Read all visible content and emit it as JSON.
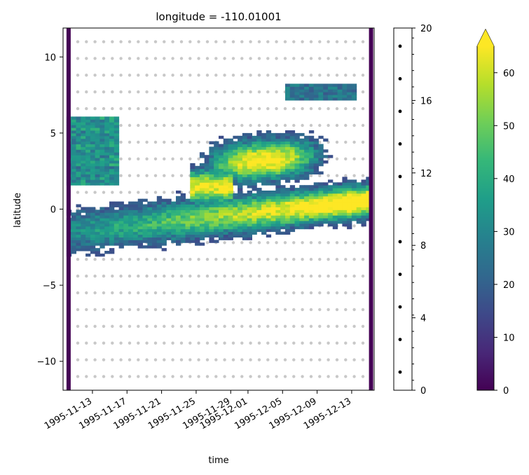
{
  "chart_data": [
    {
      "type": "heatmap",
      "title": "longitude = -110.01001",
      "xlabel": "time",
      "ylabel": "latitude",
      "xtick_labels": [
        "1995-11-13",
        "1995-11-17",
        "1995-11-21",
        "1995-11-25",
        "1995-11-29",
        "1995-12-01",
        "1995-12-05",
        "1995-12-09",
        "1995-12-13"
      ],
      "xtick_dates": [
        "1995-11-13",
        "1995-11-17",
        "1995-11-21",
        "1995-11-25",
        "1995-11-29",
        "1995-12-01",
        "1995-12-05",
        "1995-12-09",
        "1995-12-13"
      ],
      "xlim": [
        "1995-11-09.6",
        "1995-12-15.6"
      ],
      "yticks": [
        -10,
        -5,
        0,
        5,
        10
      ],
      "ytick_labels": [
        "−10",
        "−5",
        "0",
        "5",
        "10"
      ],
      "ylim": [
        -11.9,
        11.9
      ],
      "stipple_dots": "grey dots on a regular time-latitude grid over the panel",
      "features": [
        {
          "name": "equatorial band",
          "lat_range": [
            -3.5,
            1.2
          ],
          "time_range": [
            "1995-11-10",
            "1995-12-15"
          ],
          "peak_value": 65
        },
        {
          "name": "northern arc",
          "lat_range": [
            0,
            4.2
          ],
          "time_range": [
            "1995-11-24",
            "1995-12-10"
          ],
          "peak_value": 65
        }
      ],
      "edge_columns": [
        "1995-11-10",
        "1995-12-15"
      ]
    },
    {
      "type": "scatter",
      "description": "narrow side panel with a vertical column of black dots",
      "yticks": [
        0,
        4,
        8,
        12,
        16,
        20
      ],
      "ylim": [
        0,
        20
      ],
      "dot_y": [
        1,
        2.8,
        4.6,
        6.4,
        8.2,
        10,
        11.8,
        13.6,
        15.4,
        17.2,
        19
      ]
    },
    {
      "type": "colorbar",
      "colormap": "viridis",
      "range": [
        0,
        65
      ],
      "extend": "max",
      "extend_color": "#fde725",
      "ticks": [
        0,
        10,
        20,
        30,
        40,
        50,
        60
      ]
    }
  ],
  "colors": {
    "stipple": "#c8c8c8",
    "viridis": [
      "#440154",
      "#482878",
      "#3e4989",
      "#31688e",
      "#26828e",
      "#1f9e89",
      "#35b779",
      "#6ece58",
      "#b5de2b",
      "#fde725"
    ]
  }
}
